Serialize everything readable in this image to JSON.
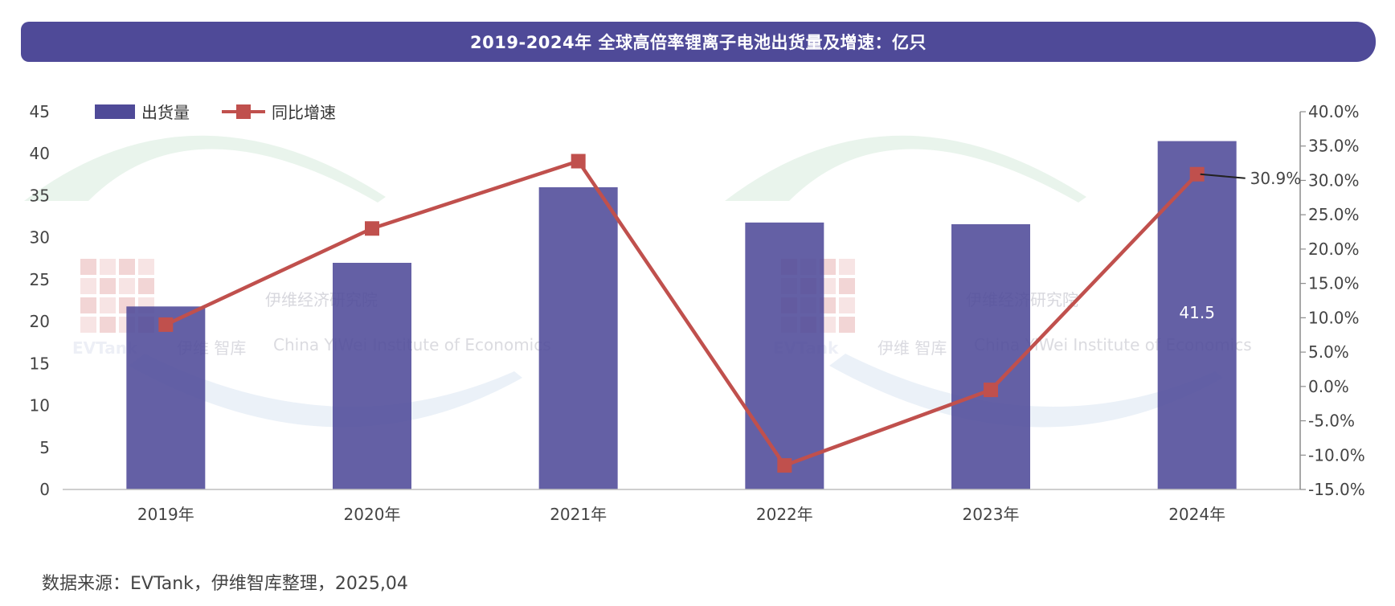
{
  "title": "2019-2024年 全球高倍率锂离子电池出货量及增速：亿只",
  "source": "数据来源：EVTank，伊维智库整理，2025,04",
  "watermark": {
    "brand": "EVTank",
    "name_cn": "伊维经济研究院",
    "sub_cn": "伊维 智库",
    "name_en": "China YiWei Institute of Economics"
  },
  "colors": {
    "bar": "#4f4a98",
    "line": "#c0504d",
    "title_bg": "#4f4a98"
  },
  "chart_data": {
    "type": "bar",
    "categories": [
      "2019年",
      "2020年",
      "2021年",
      "2022年",
      "2023年",
      "2024年"
    ],
    "series": [
      {
        "name": "出货量",
        "type": "bar",
        "axis": "left",
        "values": [
          21.8,
          27.0,
          36.0,
          31.8,
          31.6,
          41.5
        ],
        "data_labels": [
          null,
          null,
          null,
          null,
          null,
          "41.5"
        ]
      },
      {
        "name": "同比增速",
        "type": "line",
        "axis": "right",
        "unit": "%",
        "values": [
          9.0,
          23.0,
          32.8,
          -11.5,
          -0.5,
          30.9
        ],
        "data_labels": [
          null,
          null,
          null,
          null,
          null,
          "30.9%"
        ]
      }
    ],
    "y_left": {
      "min": 0,
      "max": 45,
      "step": 5,
      "ticks": [
        "0",
        "5",
        "10",
        "15",
        "20",
        "25",
        "30",
        "35",
        "40",
        "45"
      ]
    },
    "y_right": {
      "min": -15,
      "max": 40,
      "step": 5,
      "ticks": [
        "-15.0%",
        "-10.0%",
        "-5.0%",
        "0.0%",
        "5.0%",
        "10.0%",
        "15.0%",
        "20.0%",
        "25.0%",
        "30.0%",
        "35.0%",
        "40.0%"
      ]
    },
    "legend": {
      "position": "top-left",
      "items": [
        "出货量",
        "同比增速"
      ]
    },
    "grid": false
  }
}
